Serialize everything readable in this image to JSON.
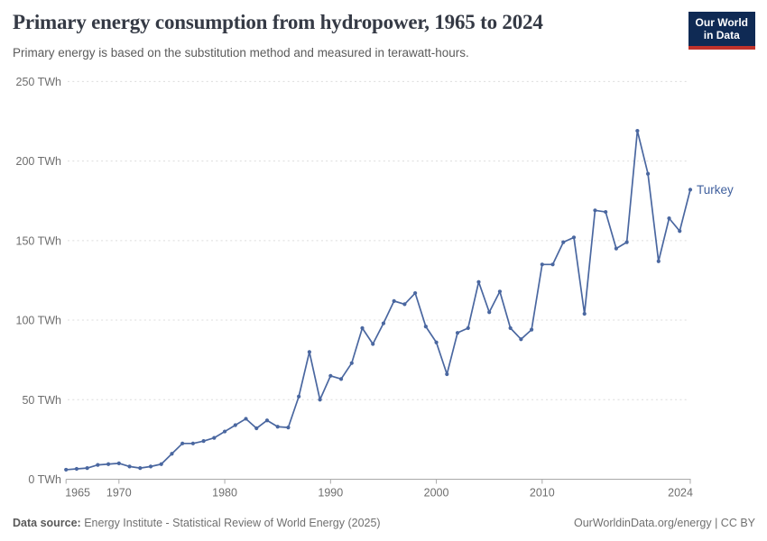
{
  "header": {
    "title": "Primary energy consumption from hydropower, 1965 to 2024",
    "subtitle": "Primary energy is based on the substitution method and measured in terawatt-hours.",
    "logo_line1": "Our World",
    "logo_line2": "in Data",
    "logo_bg_color": "#0f2a54",
    "logo_stripe_color": "#c0322b"
  },
  "footer": {
    "source_label": "Data source:",
    "source_text": " Energy Institute - Statistical Review of World Energy (2025)",
    "credit": "OurWorldinData.org/energy | CC BY"
  },
  "chart_data": {
    "type": "line",
    "title": "Primary energy consumption from hydropower, 1965 to 2024",
    "subtitle": "Primary energy is based on the substitution method and measured in terawatt-hours.",
    "xlabel": "",
    "ylabel": "",
    "xlim": [
      1965,
      2024
    ],
    "ylim": [
      0,
      250
    ],
    "x_ticks": [
      1965,
      1970,
      1980,
      1990,
      2000,
      2010,
      2024
    ],
    "y_ticks": [
      0,
      50,
      100,
      150,
      200,
      250
    ],
    "y_tick_suffix": " TWh",
    "grid": "horizontal-dashed",
    "legend_position": "end-of-line-label",
    "line_color": "#4a67a0",
    "label_color": "#40609e",
    "x": [
      1965,
      1966,
      1967,
      1968,
      1969,
      1970,
      1971,
      1972,
      1973,
      1974,
      1975,
      1976,
      1977,
      1978,
      1979,
      1980,
      1981,
      1982,
      1983,
      1984,
      1985,
      1986,
      1987,
      1988,
      1989,
      1990,
      1991,
      1992,
      1993,
      1994,
      1995,
      1996,
      1997,
      1998,
      1999,
      2000,
      2001,
      2002,
      2003,
      2004,
      2005,
      2006,
      2007,
      2008,
      2009,
      2010,
      2011,
      2012,
      2013,
      2014,
      2015,
      2016,
      2017,
      2018,
      2019,
      2020,
      2021,
      2022,
      2023,
      2024
    ],
    "series": [
      {
        "name": "Turkey",
        "values": [
          6,
          6.5,
          7,
          9,
          9.5,
          10,
          8,
          7,
          8,
          9.5,
          16,
          22.5,
          22.5,
          24,
          26,
          30,
          34,
          38,
          32,
          37,
          33,
          32.5,
          52,
          80,
          50,
          65,
          63,
          73,
          95,
          85,
          98,
          112,
          110,
          117,
          96,
          86,
          66,
          92,
          95,
          124,
          105,
          118,
          95,
          88,
          94,
          135,
          135,
          149,
          152,
          104,
          169,
          168,
          145,
          149,
          219,
          192,
          137,
          164,
          156,
          182
        ]
      }
    ]
  }
}
